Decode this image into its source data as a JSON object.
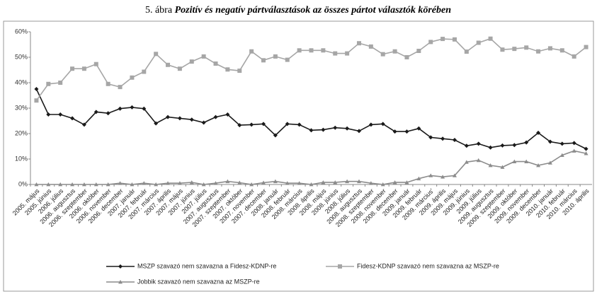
{
  "chart_data": {
    "type": "line",
    "title_number": "5. ábra",
    "title": "Pozitív és negatív pártválasztások az összes pártot választók körében",
    "categories": [
      "2005. május",
      "2005. június",
      "2006. július",
      "2006. augusztus",
      "2006. szeptember",
      "2006. október",
      "2006. november",
      "2006. december",
      "2007. január",
      "2007. február",
      "2007. március",
      "2007. április",
      "2007. május",
      "2007. június",
      "2007. július",
      "2007. augusztus",
      "2007. szeptember",
      "2007. október",
      "2007. november",
      "2007. december",
      "2008. január",
      "2008. február",
      "2008. március",
      "2008. április",
      "2008. május",
      "2008. június",
      "2008. július",
      "2008. augusztus",
      "2008. szeptember",
      "2008. november",
      "2008. december",
      "2009. január",
      "2009. február",
      "2009. március'",
      "2009. április",
      "2009. május",
      "2009. június",
      "2009. július",
      "2009. augusztus",
      "2009. szeptember",
      "2009. október",
      "2009. november",
      "2009. december",
      "2010. január",
      "2010. február",
      "2010. március",
      "2010. április"
    ],
    "series": [
      {
        "name": "MSZP szavazó nem szavazna a Fidesz-KDNP-re",
        "color": "#1a1a1a",
        "marker": "diamond",
        "values": [
          37.5,
          27.5,
          27.5,
          26,
          23.5,
          28.5,
          28,
          29.8,
          30.3,
          29.8,
          24,
          26.5,
          26,
          25.5,
          24.3,
          26.5,
          27.5,
          23.3,
          23.5,
          23.8,
          19.3,
          23.8,
          23.5,
          21.3,
          21.5,
          22.3,
          22,
          21,
          23.5,
          23.8,
          20.8,
          20.8,
          22,
          18.5,
          18,
          17.5,
          15.2,
          16,
          14.5,
          15.3,
          15.5,
          16.5,
          20.3,
          16.8,
          16,
          16.3,
          14
        ]
      },
      {
        "name": "Fidesz-KDNP szavazó nem szavazna az MSZP-re",
        "color": "#a6a6a6",
        "marker": "square",
        "values": [
          33,
          39.5,
          40,
          45.5,
          45.5,
          47.3,
          39.5,
          38.3,
          42,
          44.3,
          51.3,
          47,
          45.5,
          48.3,
          50.3,
          47.5,
          45.2,
          44.7,
          52.3,
          48.8,
          50.3,
          49,
          52.7,
          52.7,
          52.7,
          51.5,
          51.5,
          55.5,
          54.2,
          51.2,
          52.3,
          50,
          52.5,
          56,
          57.2,
          57,
          52.2,
          55.7,
          57.3,
          53,
          53.3,
          53.8,
          52.3,
          53.5,
          52.7,
          50.3,
          54
        ]
      },
      {
        "name": "Jobbik szavazó nem szavazna az MSZP-re",
        "color": "#8c8c8c",
        "marker": "triangle",
        "values": [
          0,
          0,
          0,
          0,
          0,
          0,
          0,
          0.5,
          0,
          0.5,
          0,
          0.5,
          0.5,
          0.8,
          0,
          0.5,
          1.2,
          0.7,
          0,
          0.7,
          1.2,
          0.5,
          0.5,
          0,
          0.8,
          0.8,
          1.2,
          1.2,
          0.5,
          0,
          0.8,
          0.8,
          2.3,
          3.5,
          3,
          3.5,
          8.8,
          9.5,
          7.5,
          6.8,
          9,
          9,
          7.5,
          8.5,
          11.5,
          13.2,
          12.2
        ]
      }
    ],
    "ylim": [
      0,
      60
    ],
    "yticks": [
      {
        "value": 0,
        "label": "0%"
      },
      {
        "value": 10,
        "label": "10%"
      },
      {
        "value": 20,
        "label": "20%"
      },
      {
        "value": 30,
        "label": "30%"
      },
      {
        "value": 40,
        "label": "40%"
      },
      {
        "value": 50,
        "label": "50%"
      },
      {
        "value": 60,
        "label": "60%"
      }
    ],
    "grid": false,
    "legend": "bottom"
  }
}
